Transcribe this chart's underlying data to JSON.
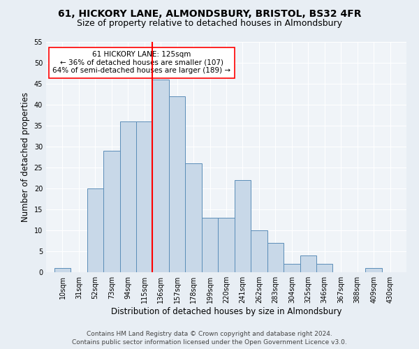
{
  "title": "61, HICKORY LANE, ALMONDSBURY, BRISTOL, BS32 4FR",
  "subtitle": "Size of property relative to detached houses in Almondsbury",
  "xlabel": "Distribution of detached houses by size in Almondsbury",
  "ylabel": "Number of detached properties",
  "footer1": "Contains HM Land Registry data © Crown copyright and database right 2024.",
  "footer2": "Contains public sector information licensed under the Open Government Licence v3.0.",
  "bin_labels": [
    "10sqm",
    "31sqm",
    "52sqm",
    "73sqm",
    "94sqm",
    "115sqm",
    "136sqm",
    "157sqm",
    "178sqm",
    "199sqm",
    "220sqm",
    "241sqm",
    "262sqm",
    "283sqm",
    "304sqm",
    "325sqm",
    "346sqm",
    "367sqm",
    "388sqm",
    "409sqm",
    "430sqm"
  ],
  "bin_edges": [
    10,
    31,
    52,
    73,
    94,
    115,
    136,
    157,
    178,
    199,
    220,
    241,
    262,
    283,
    304,
    325,
    346,
    367,
    388,
    409,
    430
  ],
  "bar_heights": [
    1,
    0,
    20,
    29,
    36,
    36,
    46,
    42,
    26,
    13,
    13,
    22,
    10,
    7,
    2,
    4,
    2,
    0,
    0,
    1,
    0
  ],
  "bar_color": "#c8d8e8",
  "bar_edge_color": "#5b8db8",
  "vline_color": "red",
  "annotation_text": "61 HICKORY LANE: 125sqm\n← 36% of detached houses are smaller (107)\n64% of semi-detached houses are larger (189) →",
  "ylim": [
    0,
    55
  ],
  "yticks": [
    0,
    5,
    10,
    15,
    20,
    25,
    30,
    35,
    40,
    45,
    50,
    55
  ],
  "bg_color": "#e8eef4",
  "plot_bg_color": "#f0f4f8",
  "grid_color": "white",
  "title_fontsize": 10,
  "subtitle_fontsize": 9,
  "xlabel_fontsize": 8.5,
  "ylabel_fontsize": 8.5,
  "tick_fontsize": 7,
  "footer_fontsize": 6.5,
  "annot_fontsize": 7.5
}
